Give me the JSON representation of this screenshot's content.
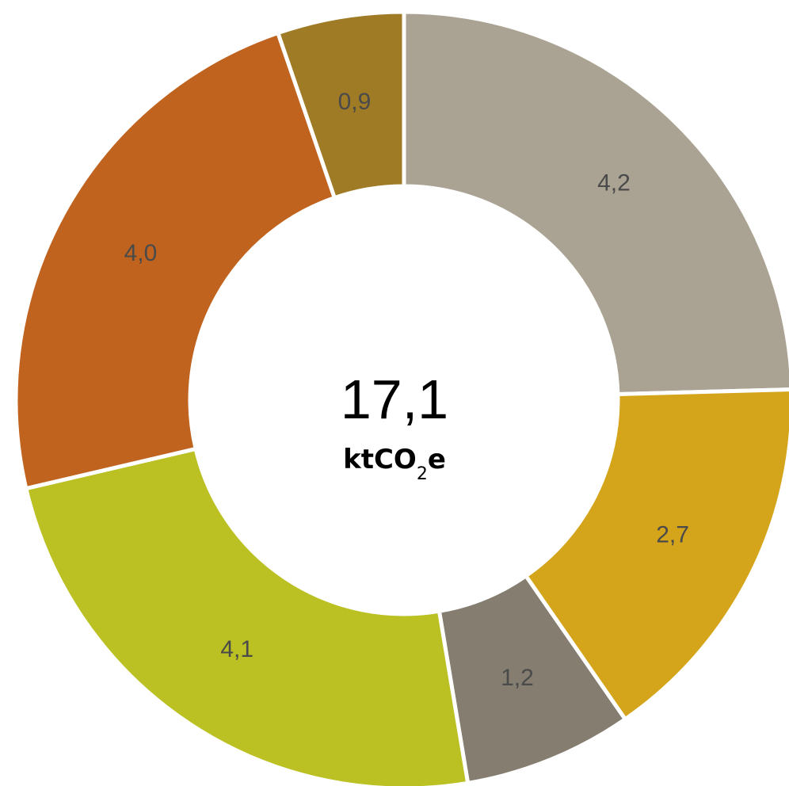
{
  "chart_data": {
    "type": "pie",
    "donut": true,
    "legend": "none",
    "slices": [
      {
        "label": "4,2",
        "value": 4.2,
        "color": "#aaa393"
      },
      {
        "label": "2,7",
        "value": 2.7,
        "color": "#d4a41a"
      },
      {
        "label": "1,2",
        "value": 1.2,
        "color": "#847d70"
      },
      {
        "label": "4,1",
        "value": 4.1,
        "color": "#bbc023"
      },
      {
        "label": "4,0",
        "value": 4.0,
        "color": "#c0631f"
      },
      {
        "label": "0,9",
        "value": 0.9,
        "color": "#a07b26"
      }
    ],
    "center": {
      "total": "17,1",
      "unit_main": "ktCO",
      "unit_sub": "2",
      "unit_tail": "e"
    }
  }
}
